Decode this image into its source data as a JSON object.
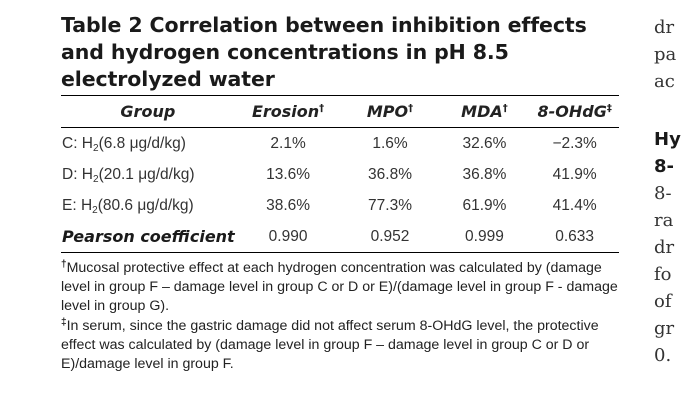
{
  "table": {
    "caption": "Table 2 Correlation between inhibition effects and hydrogen concentrations in pH 8.5 electrolyzed water",
    "columns": [
      {
        "label": "Group",
        "mark": ""
      },
      {
        "label": "Erosion",
        "mark": "†"
      },
      {
        "label": "MPO",
        "mark": "†"
      },
      {
        "label": "MDA",
        "mark": "†"
      },
      {
        "label": "8-OHdG",
        "mark": "‡"
      }
    ],
    "rows": [
      {
        "group_prefix": "C: H",
        "group_sub": "2",
        "group_suffix": "(6.8 μg/d/kg)",
        "erosion": "2.1%",
        "mpo": "1.6%",
        "mda": "32.6%",
        "ohdg": "−2.3%"
      },
      {
        "group_prefix": "D: H",
        "group_sub": "2",
        "group_suffix": "(20.1 μg/d/kg)",
        "erosion": "13.6%",
        "mpo": "36.8%",
        "mda": "36.8%",
        "ohdg": "41.9%"
      },
      {
        "group_prefix": "E: H",
        "group_sub": "2",
        "group_suffix": "(80.6 μg/d/kg)",
        "erosion": "38.6%",
        "mpo": "77.3%",
        "mda": "61.9%",
        "ohdg": "41.4%"
      }
    ],
    "pearson": {
      "label": "Pearson coefficient",
      "erosion": "0.990",
      "mpo": "0.952",
      "mda": "0.999",
      "ohdg": "0.633"
    },
    "footnotes": [
      {
        "mark": "†",
        "text": "Mucosal protective effect at each hydrogen concentration was calculated by (damage level in group F – damage level in group C or D or E)/(damage level in group F - damage level in group G)."
      },
      {
        "mark": "‡",
        "text": "In serum, since the gastric damage did not affect serum 8-OHdG level, the protective effect was calculated by (damage level in group F – damage level in group C or D or E)/damage level in group F."
      }
    ]
  },
  "right_column": {
    "top_lines": [
      "dr",
      "pa",
      "ac"
    ],
    "heading_lines": [
      "Hy",
      "8-"
    ],
    "body_lines": [
      "8-",
      "ra",
      "dr",
      "fo",
      "of",
      "gr",
      "0."
    ]
  }
}
